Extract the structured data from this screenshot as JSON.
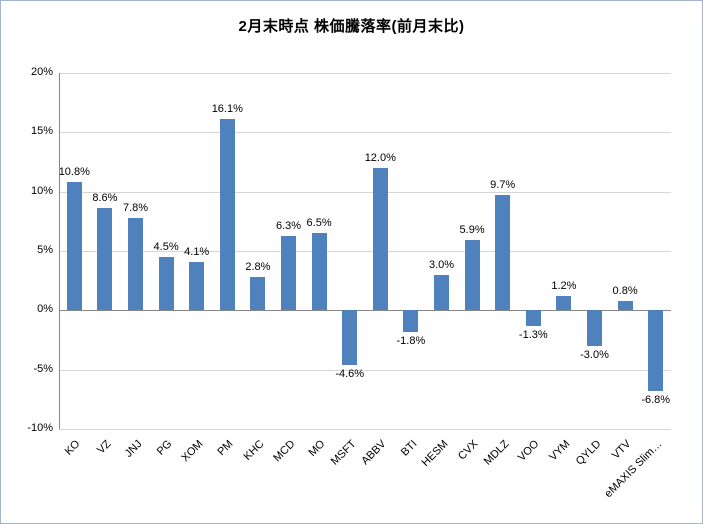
{
  "chart_data": {
    "type": "bar",
    "title": "2月末時点 株価騰落率(前月末比)",
    "categories": [
      "KO",
      "VZ",
      "JNJ",
      "PG",
      "XOM",
      "PM",
      "KHC",
      "MCD",
      "MO",
      "MSFT",
      "ABBV",
      "BTI",
      "HESM",
      "CVX",
      "MDLZ",
      "VOO",
      "VYM",
      "QYLD",
      "VTV",
      "eMAXIS Slim…"
    ],
    "values": [
      10.8,
      8.6,
      7.8,
      4.5,
      4.1,
      16.1,
      2.8,
      6.3,
      6.5,
      -4.6,
      12.0,
      -1.8,
      3.0,
      5.9,
      9.7,
      -1.3,
      1.2,
      -3.0,
      0.8,
      -6.8
    ],
    "value_labels": [
      "10.8%",
      "8.6%",
      "7.8%",
      "4.5%",
      "4.1%",
      "16.1%",
      "2.8%",
      "6.3%",
      "6.5%",
      "-4.6%",
      "12.0%",
      "-1.8%",
      "3.0%",
      "5.9%",
      "9.7%",
      "-1.3%",
      "1.2%",
      "-3.0%",
      "0.8%",
      "-6.8%"
    ],
    "xlabel": "",
    "ylabel": "",
    "ylim": [
      -10,
      20
    ],
    "ytick_step": 5,
    "ytick_labels": [
      "20%",
      "15%",
      "10%",
      "5%",
      "0%",
      "-5%",
      "-10%"
    ],
    "grid": true,
    "legend": "none",
    "colors": {
      "bar": "#4f81bd",
      "gridline": "#d6d6d6",
      "axis": "#868686",
      "frame_border": "#a3b5cc",
      "text": "#000000"
    }
  }
}
